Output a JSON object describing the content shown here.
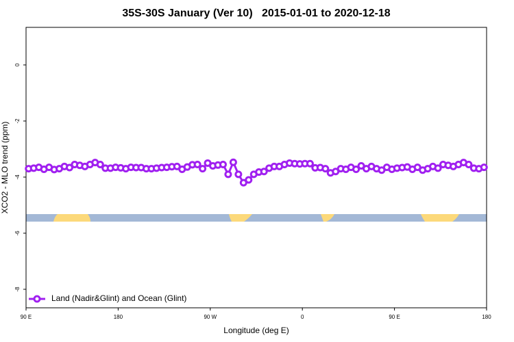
{
  "chart_data": {
    "type": "line",
    "title": "35S-30S January (Ver 10)   2015-01-01 to 2020-12-18",
    "x_label": "Longitude (deg E)",
    "y_label": "XCO2 - MLO trend (ppm)",
    "xlim": [
      90,
      540
    ],
    "ylim": [
      -8.66,
      1.34
    ],
    "xticks": [
      {
        "value": 90,
        "label": "90 E"
      },
      {
        "value": 180,
        "label": "180"
      },
      {
        "value": 270,
        "label": "90 W"
      },
      {
        "value": 360,
        "label": "0"
      },
      {
        "value": 450,
        "label": "90 E"
      },
      {
        "value": 540,
        "label": "180"
      }
    ],
    "yticks": [
      0,
      -2,
      -4,
      -6,
      -8
    ],
    "grid": false,
    "legend_position": "bottom-left",
    "x": [
      92.5,
      97.5,
      102.5,
      107.5,
      112.5,
      117.5,
      122.5,
      127.5,
      132.5,
      137.5,
      142.5,
      147.5,
      152.5,
      157.5,
      162.5,
      167.5,
      172.5,
      177.5,
      182.5,
      187.5,
      192.5,
      197.5,
      202.5,
      207.5,
      212.5,
      217.5,
      222.5,
      227.5,
      232.5,
      237.5,
      242.5,
      247.5,
      252.5,
      257.5,
      262.5,
      267.5,
      272.5,
      277.5,
      282.5,
      287.5,
      292.5,
      297.5,
      302.5,
      307.5,
      312.5,
      317.5,
      322.5,
      327.5,
      332.5,
      337.5,
      342.5,
      347.5,
      352.5,
      357.5,
      362.5,
      367.5,
      372.5,
      377.5,
      382.5,
      387.5,
      392.5,
      397.5,
      402.5,
      407.5,
      412.5,
      417.5,
      422.5,
      427.5,
      432.5,
      437.5,
      442.5,
      447.5,
      452.5,
      457.5,
      462.5,
      467.5,
      472.5,
      477.5,
      482.5,
      487.5,
      492.5,
      497.5,
      502.5,
      507.5,
      512.5,
      517.5,
      522.5,
      527.5,
      532.5,
      537.5
    ],
    "series": [
      {
        "name": "Land (Nadir&Glint) and Ocean (Glint)",
        "color": "#a020f0",
        "values": [
          -3.7,
          -3.68,
          -3.65,
          -3.72,
          -3.65,
          -3.73,
          -3.7,
          -3.62,
          -3.66,
          -3.55,
          -3.58,
          -3.62,
          -3.55,
          -3.48,
          -3.55,
          -3.68,
          -3.68,
          -3.65,
          -3.67,
          -3.7,
          -3.65,
          -3.66,
          -3.66,
          -3.7,
          -3.7,
          -3.68,
          -3.66,
          -3.65,
          -3.63,
          -3.62,
          -3.72,
          -3.64,
          -3.56,
          -3.55,
          -3.7,
          -3.5,
          -3.6,
          -3.57,
          -3.55,
          -3.9,
          -3.47,
          -3.9,
          -4.2,
          -4.1,
          -3.9,
          -3.82,
          -3.8,
          -3.68,
          -3.62,
          -3.62,
          -3.55,
          -3.5,
          -3.52,
          -3.53,
          -3.52,
          -3.52,
          -3.67,
          -3.66,
          -3.7,
          -3.85,
          -3.8,
          -3.7,
          -3.72,
          -3.65,
          -3.72,
          -3.6,
          -3.7,
          -3.62,
          -3.7,
          -3.75,
          -3.65,
          -3.72,
          -3.68,
          -3.66,
          -3.64,
          -3.72,
          -3.65,
          -3.75,
          -3.7,
          -3.62,
          -3.68,
          -3.55,
          -3.58,
          -3.62,
          -3.55,
          -3.48,
          -3.55,
          -3.68,
          -3.7,
          -3.65
        ]
      }
    ]
  }
}
